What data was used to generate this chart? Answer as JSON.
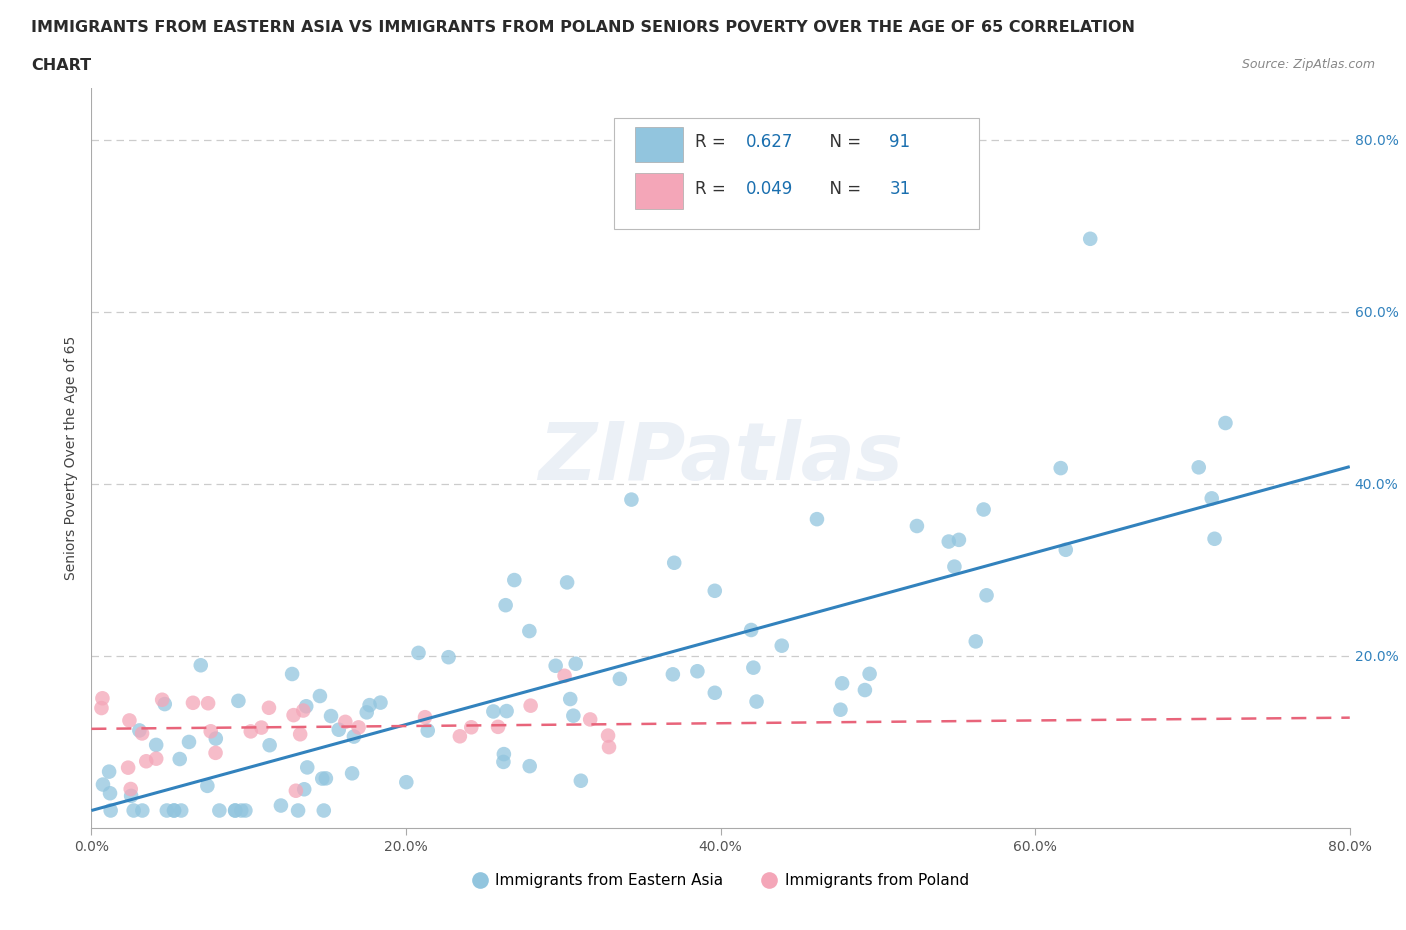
{
  "title_line1": "IMMIGRANTS FROM EASTERN ASIA VS IMMIGRANTS FROM POLAND SENIORS POVERTY OVER THE AGE OF 65 CORRELATION",
  "title_line2": "CHART",
  "source_text": "Source: ZipAtlas.com",
  "watermark": "ZIPatlas",
  "ylabel": "Seniors Poverty Over the Age of 65",
  "xlim": [
    0.0,
    0.8
  ],
  "ylim": [
    0.0,
    0.86
  ],
  "xtick_labels": [
    "0.0%",
    "20.0%",
    "40.0%",
    "60.0%",
    "80.0%"
  ],
  "xtick_vals": [
    0.0,
    0.2,
    0.4,
    0.6,
    0.8
  ],
  "ytick_labels": [
    "20.0%",
    "40.0%",
    "60.0%",
    "80.0%"
  ],
  "ytick_vals": [
    0.2,
    0.4,
    0.6,
    0.8
  ],
  "blue_color": "#92c5de",
  "pink_color": "#f4a6b8",
  "blue_line_color": "#3282bd",
  "pink_line_color": "#e8647a",
  "R_blue": 0.627,
  "N_blue": 91,
  "R_pink": 0.049,
  "N_pink": 31,
  "legend_label_blue": "Immigrants from Eastern Asia",
  "legend_label_pink": "Immigrants from Poland",
  "blue_trend_x": [
    0.0,
    0.8
  ],
  "blue_trend_y": [
    0.02,
    0.42
  ],
  "pink_trend_x": [
    0.0,
    0.8
  ],
  "pink_trend_y": [
    0.115,
    0.128
  ],
  "grid_color": "#cccccc",
  "background_color": "#ffffff",
  "title_fontsize": 11.5,
  "axis_label_fontsize": 10,
  "tick_fontsize": 10,
  "watermark_fontsize": 58,
  "watermark_alpha": 0.35,
  "legend_color": "#1a6faf"
}
